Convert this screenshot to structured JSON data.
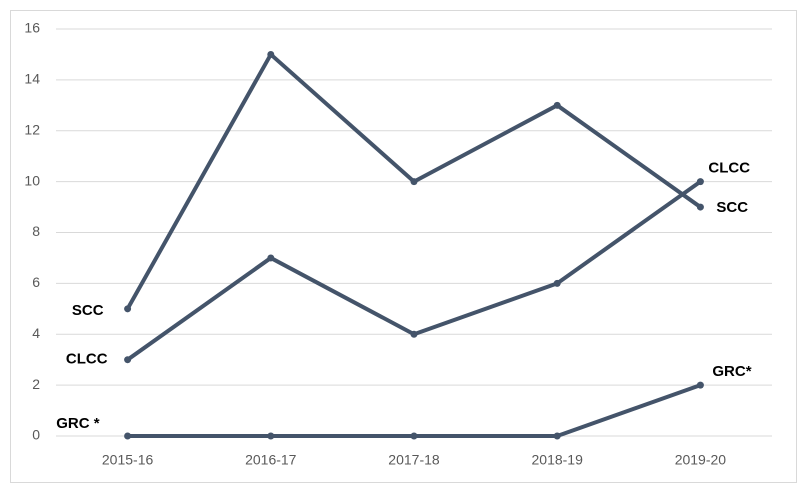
{
  "chart_data": {
    "type": "line",
    "categories": [
      "2015-16",
      "2016-17",
      "2017-18",
      "2018-19",
      "2019-20"
    ],
    "series": [
      {
        "name": "SCC",
        "end_label": "SCC",
        "color": "#44546a",
        "values": [
          5,
          15,
          10,
          13,
          9
        ]
      },
      {
        "name": "CLCC",
        "end_label": "CLCC",
        "color": "#44546a",
        "values": [
          3,
          7,
          4,
          6,
          10
        ]
      },
      {
        "name": "GRC *",
        "end_label": "GRC*",
        "color": "#44546a",
        "values": [
          0,
          0,
          0,
          0,
          2
        ]
      }
    ],
    "ylim": [
      0,
      16
    ],
    "yticks": [
      0,
      2,
      4,
      6,
      8,
      10,
      12,
      14,
      16
    ],
    "grid": true
  }
}
